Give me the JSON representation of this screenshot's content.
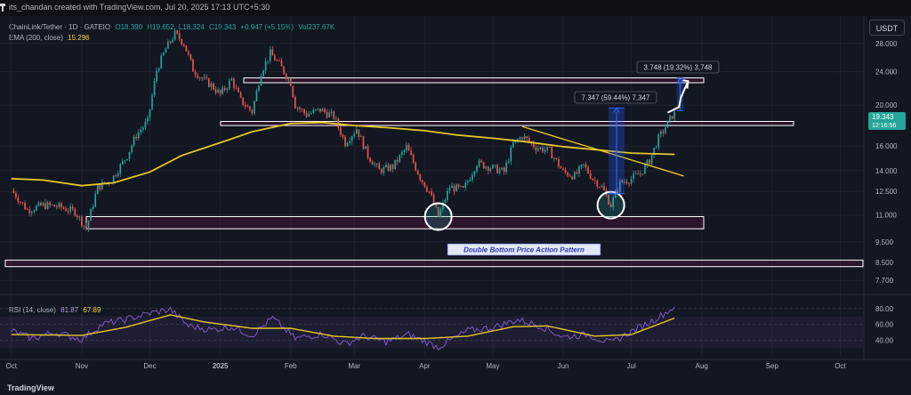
{
  "header": {
    "creator": "its_chandan created with TradingView.com, Jul 20, 2025 17:13 UTC+5:30",
    "currency_button": "USDT"
  },
  "legend": {
    "symbol": "ChainLink/Tether · 1D · GATEIO",
    "open": "O18.390",
    "high": "H19.652",
    "low": "L18.324",
    "close": "C19.343",
    "change": "+0.947 (+5.15%)",
    "volume": "Vol237.67K",
    "ema_label": "EMA (200, close)",
    "ema_value": "15.296",
    "rsi_label": "RSI (14, close)",
    "rsi_value": "81.87",
    "rsi_ma_value": "67.89"
  },
  "annotations": {
    "move_big": "7.347 (59.44%) 7,347",
    "move_small": "3.748 (19.32%) 3,748",
    "pattern": "Double Bottom Price Action Pattern"
  },
  "price_tag": {
    "price": "19.343",
    "countdown": "12:16:56"
  },
  "footer": {
    "brand": "TradingView"
  },
  "colors": {
    "background": "#131722",
    "up": "#26a69a",
    "down": "#ef5350",
    "ema": "#e6c72b",
    "rsi": "#7e57c2",
    "rsi_ma": "#e6c72b",
    "projection": "#3f51b5"
  },
  "chart_data": [
    {
      "type": "candlestick",
      "title": "ChainLink/Tether · 1D · GATEIO",
      "ylabel": "USDT",
      "y_scale": "log",
      "ylim": [
        7.45,
        32.5
      ],
      "y_ticks": [
        "28.000",
        "24.000",
        "20.000",
        "16.000",
        "14.000",
        "12.500",
        "11.000",
        "9.500",
        "8.500",
        "7.700"
      ],
      "x_ticks": [
        "Oct",
        "Nov",
        "Dec",
        "2025",
        "Feb",
        "Mar",
        "Apr",
        "May",
        "Jun",
        "Jul",
        "Aug",
        "Sep",
        "Oct"
      ],
      "close_path": [
        {
          "date": "2024-10-01",
          "close": 12.6
        },
        {
          "date": "2024-10-08",
          "close": 11.3
        },
        {
          "date": "2024-10-15",
          "close": 11.6
        },
        {
          "date": "2024-10-22",
          "close": 11.5
        },
        {
          "date": "2024-10-29",
          "close": 11.2
        },
        {
          "date": "2024-11-03",
          "close": 10.2
        },
        {
          "date": "2024-11-08",
          "close": 12.8
        },
        {
          "date": "2024-11-14",
          "close": 13.3
        },
        {
          "date": "2024-11-21",
          "close": 15.2
        },
        {
          "date": "2024-11-25",
          "close": 17.0
        },
        {
          "date": "2024-11-30",
          "close": 18.3
        },
        {
          "date": "2024-12-04",
          "close": 24.2
        },
        {
          "date": "2024-12-08",
          "close": 27.2
        },
        {
          "date": "2024-12-12",
          "close": 29.5
        },
        {
          "date": "2024-12-16",
          "close": 28.0
        },
        {
          "date": "2024-12-20",
          "close": 24.3
        },
        {
          "date": "2024-12-24",
          "close": 23.1
        },
        {
          "date": "2024-12-28",
          "close": 22.3
        },
        {
          "date": "2025-01-01",
          "close": 21.2
        },
        {
          "date": "2025-01-06",
          "close": 23.0
        },
        {
          "date": "2025-01-10",
          "close": 20.5
        },
        {
          "date": "2025-01-15",
          "close": 19.3
        },
        {
          "date": "2025-01-19",
          "close": 24.0
        },
        {
          "date": "2025-01-23",
          "close": 26.5
        },
        {
          "date": "2025-01-27",
          "close": 25.0
        },
        {
          "date": "2025-02-01",
          "close": 22.6
        },
        {
          "date": "2025-02-03",
          "close": 20.0
        },
        {
          "date": "2025-02-08",
          "close": 19.0
        },
        {
          "date": "2025-02-14",
          "close": 19.5
        },
        {
          "date": "2025-02-20",
          "close": 18.8
        },
        {
          "date": "2025-02-25",
          "close": 16.3
        },
        {
          "date": "2025-03-02",
          "close": 17.6
        },
        {
          "date": "2025-03-07",
          "close": 15.2
        },
        {
          "date": "2025-03-12",
          "close": 14.0
        },
        {
          "date": "2025-03-18",
          "close": 14.3
        },
        {
          "date": "2025-03-24",
          "close": 15.9
        },
        {
          "date": "2025-03-30",
          "close": 13.5
        },
        {
          "date": "2025-04-03",
          "close": 12.5
        },
        {
          "date": "2025-04-07",
          "close": 10.9
        },
        {
          "date": "2025-04-12",
          "close": 12.8
        },
        {
          "date": "2025-04-18",
          "close": 12.6
        },
        {
          "date": "2025-04-24",
          "close": 14.6
        },
        {
          "date": "2025-05-01",
          "close": 14.2
        },
        {
          "date": "2025-05-06",
          "close": 13.9
        },
        {
          "date": "2025-05-10",
          "close": 16.2
        },
        {
          "date": "2025-05-14",
          "close": 16.9
        },
        {
          "date": "2025-05-20",
          "close": 15.9
        },
        {
          "date": "2025-05-26",
          "close": 15.6
        },
        {
          "date": "2025-06-01",
          "close": 13.9
        },
        {
          "date": "2025-06-06",
          "close": 13.6
        },
        {
          "date": "2025-06-10",
          "close": 14.4
        },
        {
          "date": "2025-06-14",
          "close": 13.4
        },
        {
          "date": "2025-06-18",
          "close": 12.8
        },
        {
          "date": "2025-06-22",
          "close": 11.6
        },
        {
          "date": "2025-06-26",
          "close": 13.1
        },
        {
          "date": "2025-07-01",
          "close": 13.4
        },
        {
          "date": "2025-07-05",
          "close": 13.8
        },
        {
          "date": "2025-07-09",
          "close": 14.8
        },
        {
          "date": "2025-07-13",
          "close": 16.7
        },
        {
          "date": "2025-07-17",
          "close": 18.1
        },
        {
          "date": "2025-07-20",
          "close": 19.343
        }
      ],
      "ema_200": [
        {
          "date": "2024-10-01",
          "value": 13.4
        },
        {
          "date": "2024-10-15",
          "value": 13.3
        },
        {
          "date": "2024-11-01",
          "value": 12.9
        },
        {
          "date": "2024-11-15",
          "value": 13.1
        },
        {
          "date": "2024-12-01",
          "value": 13.9
        },
        {
          "date": "2024-12-15",
          "value": 15.2
        },
        {
          "date": "2025-01-01",
          "value": 16.3
        },
        {
          "date": "2025-01-15",
          "value": 17.3
        },
        {
          "date": "2025-02-01",
          "value": 18.1
        },
        {
          "date": "2025-02-15",
          "value": 18.2
        },
        {
          "date": "2025-03-01",
          "value": 17.9
        },
        {
          "date": "2025-03-15",
          "value": 17.7
        },
        {
          "date": "2025-04-01",
          "value": 17.4
        },
        {
          "date": "2025-04-15",
          "value": 17.0
        },
        {
          "date": "2025-05-01",
          "value": 16.7
        },
        {
          "date": "2025-05-15",
          "value": 16.4
        },
        {
          "date": "2025-06-01",
          "value": 15.95
        },
        {
          "date": "2025-06-15",
          "value": 15.7
        },
        {
          "date": "2025-07-01",
          "value": 15.4
        },
        {
          "date": "2025-07-20",
          "value": 15.296
        }
      ],
      "zones": [
        {
          "low": 22.6,
          "high": 23.2
        },
        {
          "low": 17.9,
          "high": 18.3
        },
        {
          "low": 10.2,
          "high": 10.9
        },
        {
          "low": 8.3,
          "high": 8.6
        }
      ],
      "trendline": [
        {
          "date": "2025-05-14",
          "value": 17.8
        },
        {
          "date": "2025-07-24",
          "value": 13.6
        }
      ],
      "double_bottom_markers": [
        {
          "date": "2025-04-07",
          "value": 10.9
        },
        {
          "date": "2025-06-22",
          "value": 11.6
        }
      ],
      "price_moves": [
        {
          "label": "7.347 (59.44%) 7,347",
          "from": 12.35,
          "to": 19.7,
          "start": "2025-06-21",
          "end": "2025-06-28"
        },
        {
          "label": "3.748 (19.32%) 3,748",
          "from": 19.4,
          "to": 23.15,
          "start": "2025-07-21",
          "end": "2025-07-24"
        }
      ]
    },
    {
      "type": "line",
      "title": "RSI (14, close)",
      "ylim": [
        20,
        90
      ],
      "y_ticks": [
        "80.00",
        "60.00",
        "40.00"
      ],
      "band": [
        30,
        70
      ],
      "series": [
        {
          "name": "RSI (14, close)",
          "points": [
            {
              "date": "2024-10-01",
              "value": 52
            },
            {
              "date": "2024-10-10",
              "value": 42
            },
            {
              "date": "2024-10-20",
              "value": 50
            },
            {
              "date": "2024-11-01",
              "value": 41
            },
            {
              "date": "2024-11-10",
              "value": 60
            },
            {
              "date": "2024-11-20",
              "value": 66
            },
            {
              "date": "2024-12-01",
              "value": 74
            },
            {
              "date": "2024-12-10",
              "value": 79
            },
            {
              "date": "2024-12-18",
              "value": 58
            },
            {
              "date": "2024-12-28",
              "value": 53
            },
            {
              "date": "2025-01-06",
              "value": 57
            },
            {
              "date": "2025-01-15",
              "value": 46
            },
            {
              "date": "2025-01-24",
              "value": 68
            },
            {
              "date": "2025-02-03",
              "value": 42
            },
            {
              "date": "2025-02-15",
              "value": 48
            },
            {
              "date": "2025-02-25",
              "value": 35
            },
            {
              "date": "2025-03-05",
              "value": 45
            },
            {
              "date": "2025-03-15",
              "value": 38
            },
            {
              "date": "2025-03-25",
              "value": 47
            },
            {
              "date": "2025-04-07",
              "value": 31
            },
            {
              "date": "2025-04-20",
              "value": 52
            },
            {
              "date": "2025-05-01",
              "value": 56
            },
            {
              "date": "2025-05-12",
              "value": 66
            },
            {
              "date": "2025-05-22",
              "value": 58
            },
            {
              "date": "2025-06-01",
              "value": 44
            },
            {
              "date": "2025-06-12",
              "value": 47
            },
            {
              "date": "2025-06-22",
              "value": 36
            },
            {
              "date": "2025-07-01",
              "value": 51
            },
            {
              "date": "2025-07-10",
              "value": 64
            },
            {
              "date": "2025-07-20",
              "value": 81.87
            }
          ]
        },
        {
          "name": "RSI-based MA",
          "points": [
            {
              "date": "2024-10-01",
              "value": 47
            },
            {
              "date": "2024-11-01",
              "value": 46
            },
            {
              "date": "2024-11-20",
              "value": 56
            },
            {
              "date": "2024-12-10",
              "value": 72
            },
            {
              "date": "2024-12-25",
              "value": 63
            },
            {
              "date": "2025-01-15",
              "value": 55
            },
            {
              "date": "2025-02-01",
              "value": 55
            },
            {
              "date": "2025-02-20",
              "value": 45
            },
            {
              "date": "2025-03-10",
              "value": 42
            },
            {
              "date": "2025-04-01",
              "value": 42
            },
            {
              "date": "2025-04-20",
              "value": 45
            },
            {
              "date": "2025-05-10",
              "value": 57
            },
            {
              "date": "2025-05-25",
              "value": 58
            },
            {
              "date": "2025-06-15",
              "value": 45
            },
            {
              "date": "2025-07-01",
              "value": 47
            },
            {
              "date": "2025-07-20",
              "value": 67.89
            }
          ]
        }
      ]
    }
  ]
}
